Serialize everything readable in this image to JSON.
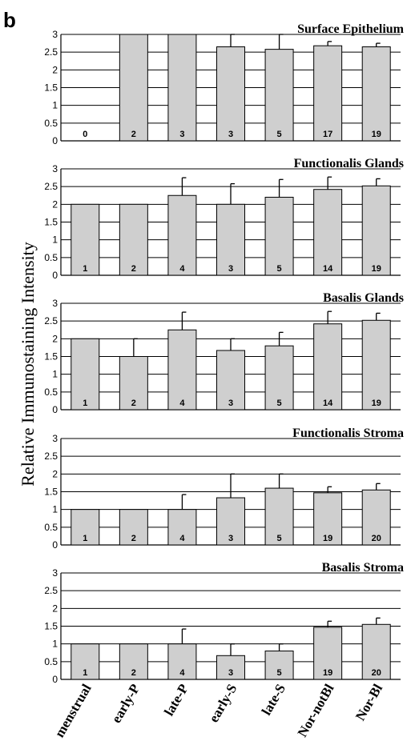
{
  "figure": {
    "panel_label": "b",
    "ylabel": "Relative Immunostaining Intensity"
  },
  "colors": {
    "bar_fill": "#cfcfcf",
    "stroke": "#000000",
    "gridline": "#000000"
  },
  "chart_data": [
    {
      "type": "bar",
      "title": "Surface Epithelium",
      "categories": [
        "menstrual",
        "early-P",
        "late-P",
        "early-S",
        "late-S",
        "Nor-notBl",
        "Nor-Bl"
      ],
      "values": [
        0,
        3,
        3,
        2.65,
        2.58,
        2.68,
        2.65
      ],
      "errors": [
        0,
        0,
        0,
        0.35,
        0.42,
        0.12,
        0.1
      ],
      "n_labels": [
        "0",
        "2",
        "3",
        "3",
        "5",
        "17",
        "19"
      ],
      "ylim": [
        0,
        3
      ],
      "yticks": [
        "0",
        "0.5",
        "1",
        "1.5",
        "2",
        "2.5",
        "3"
      ],
      "grid": true
    },
    {
      "type": "bar",
      "title": "Functionalis Glands",
      "categories": [
        "menstrual",
        "early-P",
        "late-P",
        "early-S",
        "late-S",
        "Nor-notBl",
        "Nor-Bl"
      ],
      "values": [
        2,
        2,
        2.25,
        2,
        2.2,
        2.42,
        2.52
      ],
      "errors": [
        0,
        0,
        0.5,
        0.58,
        0.5,
        0.35,
        0.2
      ],
      "n_labels": [
        "1",
        "2",
        "4",
        "3",
        "5",
        "14",
        "19"
      ],
      "ylim": [
        0,
        3
      ],
      "yticks": [
        "0",
        "0.5",
        "1",
        "1.5",
        "2",
        "2.5",
        "3"
      ],
      "grid": true
    },
    {
      "type": "bar",
      "title": "Basalis Glands",
      "categories": [
        "menstrual",
        "early-P",
        "late-P",
        "early-S",
        "late-S",
        "Nor-notBl",
        "Nor-Bl"
      ],
      "values": [
        2,
        1.5,
        2.25,
        1.67,
        1.8,
        2.42,
        2.52
      ],
      "errors": [
        0,
        0.5,
        0.5,
        0.33,
        0.38,
        0.35,
        0.2
      ],
      "n_labels": [
        "1",
        "2",
        "4",
        "3",
        "5",
        "14",
        "19"
      ],
      "ylim": [
        0,
        3
      ],
      "yticks": [
        "0",
        "0.5",
        "1",
        "1.5",
        "2",
        "2.5",
        "3"
      ],
      "grid": true
    },
    {
      "type": "bar",
      "title": "Functionalis Stroma",
      "categories": [
        "menstrual",
        "early-P",
        "late-P",
        "early-S",
        "late-S",
        "Nor-notBl",
        "Nor-Bl"
      ],
      "values": [
        1,
        1,
        1,
        1.33,
        1.6,
        1.47,
        1.55
      ],
      "errors": [
        0,
        0,
        0.42,
        0.67,
        0.4,
        0.17,
        0.18
      ],
      "n_labels": [
        "1",
        "2",
        "4",
        "3",
        "5",
        "19",
        "20"
      ],
      "ylim": [
        0,
        3
      ],
      "yticks": [
        "0",
        "0.5",
        "1",
        "1.5",
        "2",
        "2.5",
        "3"
      ],
      "grid": true
    },
    {
      "type": "bar",
      "title": "Basalis Stroma",
      "categories": [
        "menstrual",
        "early-P",
        "late-P",
        "early-S",
        "late-S",
        "Nor-notBl",
        "Nor-Bl"
      ],
      "values": [
        1,
        1,
        1,
        0.67,
        0.8,
        1.47,
        1.55
      ],
      "errors": [
        0,
        0,
        0.42,
        0.33,
        0.2,
        0.17,
        0.18
      ],
      "n_labels": [
        "1",
        "2",
        "4",
        "3",
        "5",
        "19",
        "20"
      ],
      "ylim": [
        0,
        3
      ],
      "yticks": [
        "0",
        "0.5",
        "1",
        "1.5",
        "2",
        "2.5",
        "3"
      ],
      "grid": true
    }
  ]
}
